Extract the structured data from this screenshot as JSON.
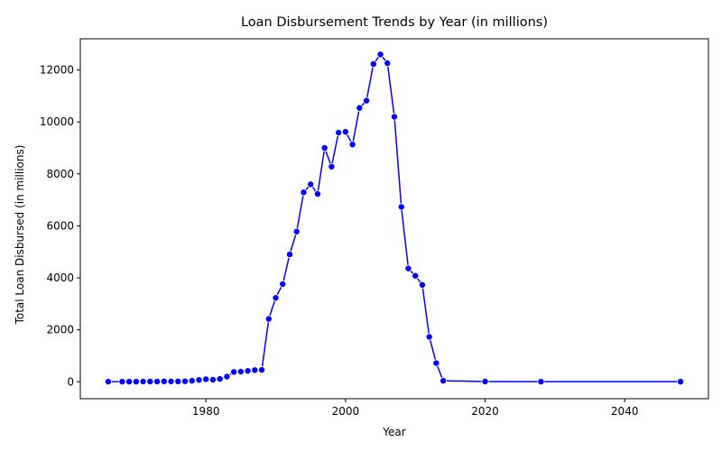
{
  "chart_data": {
    "type": "line",
    "title": "Loan Disbursement Trends by Year (in millions)",
    "xlabel": "Year",
    "ylabel": "Total Loan Disbursed (in millions)",
    "xlim": [
      1962,
      2052
    ],
    "ylim": [
      -650,
      13200
    ],
    "xticks": [
      1980,
      2000,
      2020,
      2040
    ],
    "yticks": [
      0,
      2000,
      4000,
      6000,
      8000,
      10000,
      12000
    ],
    "grid": false,
    "line_color": "#0000ff",
    "marker_color": "#0000ff",
    "series": [
      {
        "x": [
          1966,
          1968,
          1969,
          1970,
          1971,
          1972,
          1973,
          1974,
          1975,
          1976,
          1977,
          1978,
          1979,
          1980,
          1981,
          1982,
          1983,
          1984,
          1985,
          1986,
          1987,
          1988,
          1989,
          1990,
          1991,
          1992,
          1993,
          1994,
          1995,
          1996,
          1997,
          1998,
          1999,
          2000,
          2001,
          2002,
          2003,
          2004,
          2005,
          2006,
          2007,
          2008,
          2009,
          2010,
          2011,
          2012,
          2013,
          2014,
          2020,
          2028,
          2048
        ],
        "values": [
          5,
          5,
          5,
          5,
          10,
          10,
          10,
          15,
          15,
          15,
          20,
          40,
          70,
          100,
          80,
          110,
          200,
          380,
          390,
          420,
          450,
          460,
          2420,
          3230,
          3760,
          4900,
          5780,
          7290,
          7600,
          7230,
          9000,
          8280,
          9590,
          9620,
          9130,
          10540,
          10820,
          12230,
          12600,
          12260,
          10200,
          6730,
          4360,
          4080,
          3730,
          1730,
          720,
          40,
          10,
          5,
          5
        ]
      }
    ]
  }
}
